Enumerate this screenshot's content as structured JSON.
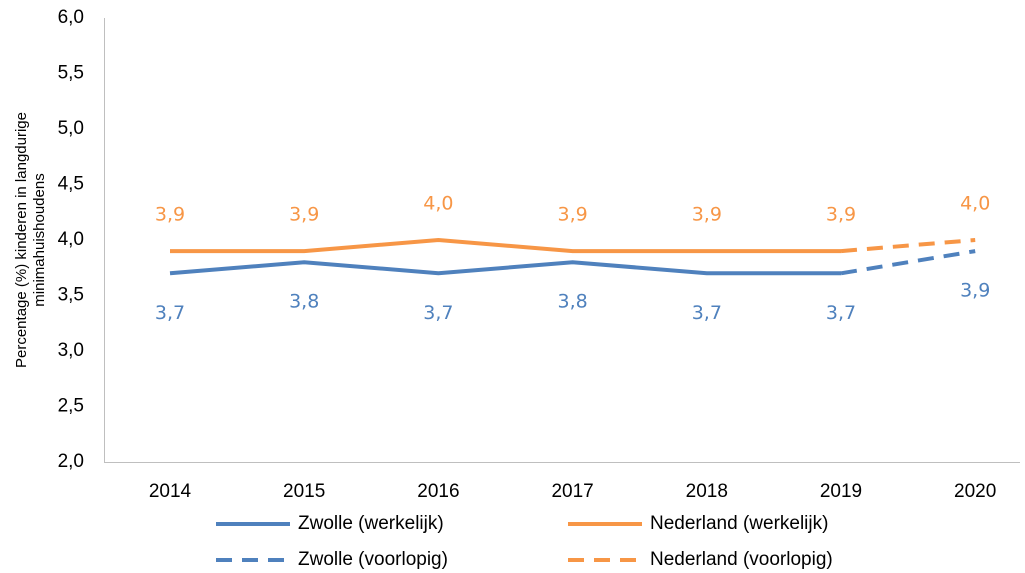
{
  "chart_data": {
    "type": "line",
    "ylabel": [
      "Percentage (%) kinderen in langdurige",
      "minimahuishoudens"
    ],
    "categories": [
      "2014",
      "2015",
      "2016",
      "2017",
      "2018",
      "2019",
      "2020"
    ],
    "ylim": [
      2,
      6
    ],
    "yticks": [
      {
        "value": 2,
        "label": "2,0"
      },
      {
        "value": 2.5,
        "label": "2,5"
      },
      {
        "value": 3,
        "label": "3,0"
      },
      {
        "value": 3.5,
        "label": "3,5"
      },
      {
        "value": 4,
        "label": "4,0"
      },
      {
        "value": 4.5,
        "label": "4,5"
      },
      {
        "value": 5,
        "label": "5,0"
      },
      {
        "value": 5.5,
        "label": "5,5"
      },
      {
        "value": 6,
        "label": "6,0"
      }
    ],
    "grid": false,
    "legend": "bottom",
    "series": [
      {
        "name": "Zwolle (werkelijk)",
        "color": "#4f81bd",
        "dashed": false,
        "values": [
          3.7,
          3.8,
          3.7,
          3.8,
          3.7,
          3.7,
          null
        ],
        "value_labels": [
          "3,7",
          "3,8",
          "3,7",
          "3,8",
          "3,7",
          "3,7",
          null
        ]
      },
      {
        "name": "Nederland (werkelijk)",
        "color": "#f79646",
        "dashed": false,
        "values": [
          3.9,
          3.9,
          4.0,
          3.9,
          3.9,
          3.9,
          null
        ],
        "value_labels": [
          "3,9",
          "3,9",
          "4,0",
          "3,9",
          "3,9",
          "3,9",
          null
        ]
      },
      {
        "name": "Zwolle (voorlopig)",
        "color": "#4f81bd",
        "dashed": true,
        "values": [
          null,
          null,
          null,
          null,
          null,
          3.7,
          3.9
        ],
        "value_labels": [
          null,
          null,
          null,
          null,
          null,
          null,
          "3,9"
        ]
      },
      {
        "name": "Nederland (voorlopig)",
        "color": "#f79646",
        "dashed": true,
        "values": [
          null,
          null,
          null,
          null,
          null,
          3.9,
          4.0
        ],
        "value_labels": [
          null,
          null,
          null,
          null,
          null,
          null,
          "4,0"
        ]
      }
    ]
  }
}
